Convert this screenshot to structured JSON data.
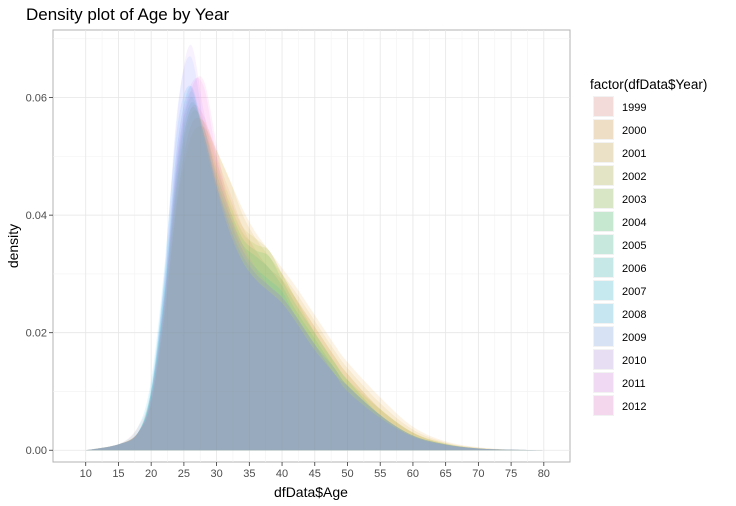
{
  "chart_data": {
    "type": "area",
    "title": "Density plot of Age by Year",
    "xlabel": "dfData$Age",
    "ylabel": "density",
    "xlim": [
      5,
      84
    ],
    "ylim": [
      -0.002,
      0.0715
    ],
    "x_ticks": [
      10,
      15,
      20,
      25,
      30,
      35,
      40,
      45,
      50,
      55,
      60,
      65,
      70,
      75,
      80
    ],
    "y_ticks": [
      0.0,
      0.02,
      0.04,
      0.06
    ],
    "y_tick_labels": [
      "0.00",
      "0.02",
      "0.04",
      "0.06"
    ],
    "grid": true,
    "legend_position": "right",
    "legend_title": "factor(dfData$Year)",
    "x": [
      10,
      15,
      18,
      20,
      22,
      24,
      26,
      28,
      30,
      32,
      34,
      36,
      38,
      40,
      42,
      45,
      48,
      50,
      55,
      60,
      65,
      70,
      75,
      80
    ],
    "series": [
      {
        "name": "1999",
        "color": "#F8766D",
        "values": [
          0,
          0.001,
          0.004,
          0.01,
          0.026,
          0.047,
          0.058,
          0.057,
          0.05,
          0.044,
          0.038,
          0.034,
          0.031,
          0.029,
          0.026,
          0.021,
          0.016,
          0.013,
          0.007,
          0.003,
          0.001,
          0.0003,
          0.0001,
          0
        ]
      },
      {
        "name": "2000",
        "color": "#E58700",
        "values": [
          0,
          0.001,
          0.003,
          0.008,
          0.022,
          0.042,
          0.053,
          0.055,
          0.051,
          0.046,
          0.041,
          0.037,
          0.034,
          0.031,
          0.028,
          0.023,
          0.018,
          0.015,
          0.009,
          0.004,
          0.0015,
          0.0005,
          0.0001,
          0
        ]
      },
      {
        "name": "2001",
        "color": "#C99800",
        "values": [
          0,
          0.001,
          0.003,
          0.008,
          0.023,
          0.043,
          0.055,
          0.056,
          0.051,
          0.046,
          0.04,
          0.036,
          0.033,
          0.03,
          0.027,
          0.022,
          0.017,
          0.014,
          0.008,
          0.0035,
          0.0013,
          0.0004,
          0.0001,
          0
        ]
      },
      {
        "name": "2002",
        "color": "#A3A500",
        "values": [
          0,
          0.001,
          0.003,
          0.009,
          0.024,
          0.045,
          0.057,
          0.056,
          0.049,
          0.043,
          0.038,
          0.036,
          0.034,
          0.03,
          0.026,
          0.021,
          0.016,
          0.013,
          0.007,
          0.003,
          0.0012,
          0.0004,
          0.0001,
          0
        ]
      },
      {
        "name": "2003",
        "color": "#6BB100",
        "values": [
          0,
          0.001,
          0.003,
          0.009,
          0.025,
          0.046,
          0.058,
          0.055,
          0.048,
          0.042,
          0.037,
          0.035,
          0.034,
          0.03,
          0.026,
          0.02,
          0.015,
          0.012,
          0.007,
          0.003,
          0.0011,
          0.0003,
          0.0001,
          0
        ]
      },
      {
        "name": "2004",
        "color": "#00BA38",
        "values": [
          0,
          0.001,
          0.003,
          0.01,
          0.026,
          0.048,
          0.059,
          0.055,
          0.047,
          0.041,
          0.036,
          0.034,
          0.033,
          0.029,
          0.025,
          0.02,
          0.015,
          0.012,
          0.006,
          0.0025,
          0.001,
          0.0003,
          0.0001,
          0
        ]
      },
      {
        "name": "2005",
        "color": "#00BF7D",
        "values": [
          0,
          0.001,
          0.003,
          0.01,
          0.027,
          0.049,
          0.06,
          0.054,
          0.046,
          0.04,
          0.035,
          0.033,
          0.031,
          0.028,
          0.024,
          0.019,
          0.014,
          0.011,
          0.006,
          0.0025,
          0.001,
          0.0003,
          0.0001,
          0
        ]
      },
      {
        "name": "2006",
        "color": "#00C0B8",
        "values": [
          0,
          0.001,
          0.003,
          0.01,
          0.028,
          0.05,
          0.061,
          0.054,
          0.045,
          0.039,
          0.034,
          0.031,
          0.029,
          0.027,
          0.023,
          0.018,
          0.014,
          0.011,
          0.006,
          0.0025,
          0.001,
          0.0003,
          0.0001,
          0
        ]
      },
      {
        "name": "2007",
        "color": "#00BCE3",
        "values": [
          0,
          0.001,
          0.003,
          0.011,
          0.029,
          0.052,
          0.062,
          0.054,
          0.045,
          0.038,
          0.033,
          0.03,
          0.028,
          0.026,
          0.023,
          0.018,
          0.013,
          0.011,
          0.006,
          0.0025,
          0.001,
          0.0003,
          0.0001,
          0
        ]
      },
      {
        "name": "2008",
        "color": "#00B0F6",
        "values": [
          0,
          0.001,
          0.004,
          0.012,
          0.031,
          0.055,
          0.062,
          0.053,
          0.044,
          0.037,
          0.032,
          0.029,
          0.027,
          0.025,
          0.022,
          0.017,
          0.013,
          0.01,
          0.0055,
          0.0023,
          0.0009,
          0.0003,
          0.0001,
          0
        ]
      },
      {
        "name": "2009",
        "color": "#619CFF",
        "values": [
          0,
          0.001,
          0.003,
          0.01,
          0.03,
          0.058,
          0.067,
          0.056,
          0.045,
          0.037,
          0.032,
          0.029,
          0.027,
          0.025,
          0.022,
          0.017,
          0.013,
          0.01,
          0.0055,
          0.0023,
          0.0009,
          0.0003,
          0.0001,
          0
        ]
      },
      {
        "name": "2010",
        "color": "#B983FF",
        "values": [
          0,
          0.001,
          0.003,
          0.01,
          0.029,
          0.057,
          0.069,
          0.058,
          0.046,
          0.038,
          0.032,
          0.029,
          0.027,
          0.025,
          0.022,
          0.017,
          0.013,
          0.01,
          0.0055,
          0.0023,
          0.0009,
          0.0003,
          0.0001,
          0
        ]
      },
      {
        "name": "2011",
        "color": "#E76BF3",
        "values": [
          0,
          0.001,
          0.003,
          0.009,
          0.026,
          0.052,
          0.062,
          0.062,
          0.05,
          0.04,
          0.034,
          0.03,
          0.028,
          0.026,
          0.023,
          0.018,
          0.013,
          0.011,
          0.006,
          0.0025,
          0.001,
          0.0003,
          0.0001,
          0
        ]
      },
      {
        "name": "2012",
        "color": "#FD61D1",
        "values": [
          0,
          0.001,
          0.003,
          0.009,
          0.025,
          0.05,
          0.061,
          0.063,
          0.052,
          0.041,
          0.035,
          0.031,
          0.028,
          0.026,
          0.023,
          0.018,
          0.014,
          0.011,
          0.006,
          0.0025,
          0.001,
          0.0003,
          0.0001,
          0
        ]
      }
    ]
  }
}
